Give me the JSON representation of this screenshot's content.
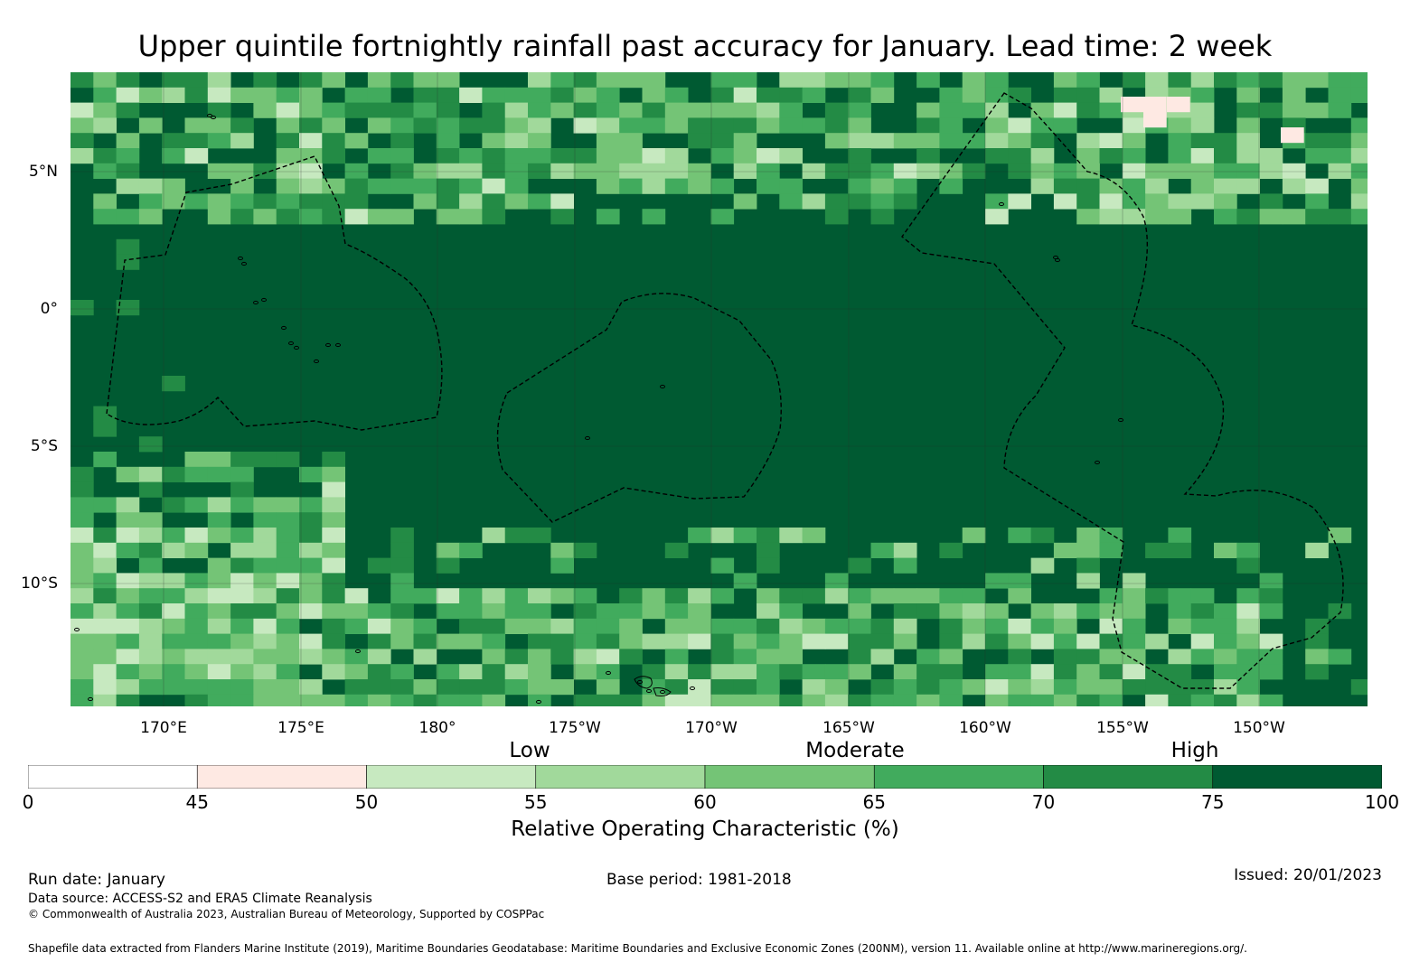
{
  "title": "Upper quintile fortnightly rainfall past accuracy for January. Lead time: 2 week",
  "map": {
    "lat_ticks": [
      "5°N",
      "0°",
      "5°S",
      "10°S"
    ],
    "lon_ticks": [
      "170°E",
      "175°E",
      "180°",
      "175°W",
      "170°W",
      "165°W",
      "160°W",
      "155°W",
      "150°W"
    ],
    "extent": {
      "lon_min": 166.6,
      "lon_max": 213.9,
      "lat_min": -14.6,
      "lat_max": 8.5
    },
    "grid": "on",
    "eez_boundaries": "dashed",
    "land_outline_color": "#000000"
  },
  "categories": {
    "low": "Low",
    "moderate": "Moderate",
    "high": "High"
  },
  "colorbar": {
    "bounds": [
      0,
      45,
      50,
      55,
      60,
      65,
      70,
      75,
      100
    ],
    "tick_labels": [
      "0",
      "45",
      "50",
      "55",
      "60",
      "65",
      "70",
      "75",
      "100"
    ],
    "colors": [
      "#ffffff",
      "#fee9e3",
      "#c7e9c0",
      "#a1d99b",
      "#74c476",
      "#41ab5d",
      "#238b45",
      "#005a32"
    ],
    "label": "Relative Operating Characteristic (%)"
  },
  "footer": {
    "run_date": "Run date: January",
    "base_period": "Base period: 1981-2018",
    "issued": "Issued: 20/01/2023",
    "data_source": "Data source: ACCESS-S2 and ERA5 Climate Reanalysis",
    "copyright": "© Commonwealth of Australia 2023, Australian Bureau of Meteorology, Supported by COSPPac",
    "shapefile": "Shapefile data extracted from Flanders Marine Institute (2019), Maritime Boundaries Geodatabase: Maritime Boundaries and Exclusive Economic Zones (200NM), version 11. Available online at http://www.marineregions.org/."
  }
}
